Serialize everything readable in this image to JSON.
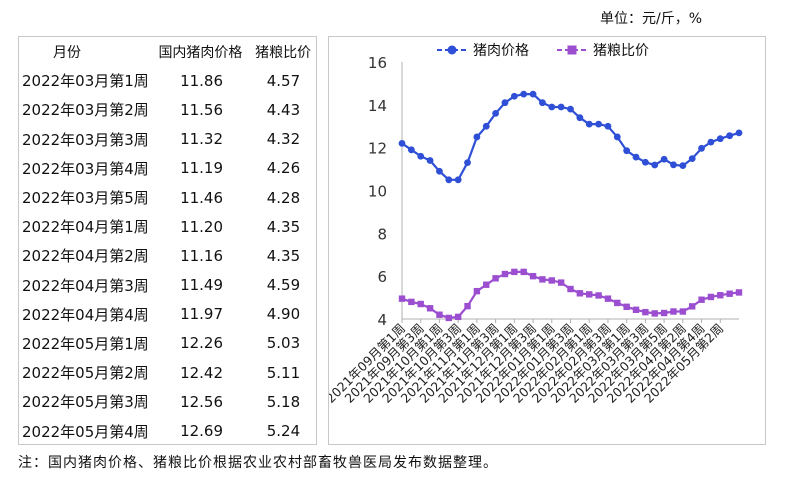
{
  "unit_label": "单位：元/斤，%",
  "note": "注：国内猪肉价格、猪粮比价根据农业农村部畜牧兽医局发布数据整理。",
  "table": {
    "headers": [
      "月份",
      "国内猪肉价格",
      "猪粮比价"
    ],
    "rows": [
      [
        "2022年03月第1周",
        "11.86",
        "4.57"
      ],
      [
        "2022年03月第2周",
        "11.56",
        "4.43"
      ],
      [
        "2022年03月第3周",
        "11.32",
        "4.32"
      ],
      [
        "2022年03月第4周",
        "11.19",
        "4.26"
      ],
      [
        "2022年03月第5周",
        "11.46",
        "4.28"
      ],
      [
        "2022年04月第1周",
        "11.20",
        "4.35"
      ],
      [
        "2022年04月第2周",
        "11.16",
        "4.35"
      ],
      [
        "2022年04月第3周",
        "11.49",
        "4.59"
      ],
      [
        "2022年04月第4周",
        "11.97",
        "4.90"
      ],
      [
        "2022年05月第1周",
        "12.26",
        "5.03"
      ],
      [
        "2022年05月第2周",
        "12.42",
        "5.11"
      ],
      [
        "2022年05月第3周",
        "12.56",
        "5.18"
      ],
      [
        "2022年05月第4周",
        "12.69",
        "5.24"
      ]
    ]
  },
  "chart_data": {
    "type": "line",
    "ylim": [
      4,
      16
    ],
    "y_ticks": [
      4,
      6,
      8,
      10,
      12,
      14,
      16
    ],
    "grid": false,
    "legend_position": "top",
    "categories": [
      "2021年09月第1周",
      "2021年09月第2周",
      "2021年09月第3周",
      "2021年09月第4周",
      "2021年10月第1周",
      "2021年10月第2周",
      "2021年10月第3周",
      "2021年10月第4周",
      "2021年11月第1周",
      "2021年11月第2周",
      "2021年11月第3周",
      "2021年11月第4周",
      "2021年12月第1周",
      "2021年12月第2周",
      "2021年12月第3周",
      "2021年12月第4周",
      "2022年01月第1周",
      "2022年01月第2周",
      "2022年01月第3周",
      "2022年01月第4周",
      "2022年02月第1周",
      "2022年02月第2周",
      "2022年02月第3周",
      "2022年02月第4周",
      "2022年03月第1周",
      "2022年03月第2周",
      "2022年03月第3周",
      "2022年03月第4周",
      "2022年03月第5周",
      "2022年04月第1周",
      "2022年04月第2周",
      "2022年04月第3周",
      "2022年04月第4周",
      "2022年05月第1周",
      "2022年05月第2周",
      "2022年05月第3周",
      "2022年05月第4周"
    ],
    "tick_labels": [
      "2021年09月第1周",
      "2021年09月第3周",
      "2021年10月第1周",
      "2021年10月第3周",
      "2021年11月第1周",
      "2021年11月第3周",
      "2021年12月第1周",
      "2021年12月第3周",
      "2022年01月第1周",
      "2022年01月第3周",
      "2022年02月第1周",
      "2022年02月第3周",
      "2022年03月第1周",
      "2022年03月第3周",
      "2022年03月第5周",
      "2022年04月第2周",
      "2022年04月第4周",
      "2022年05月第2周"
    ],
    "series": [
      {
        "name": "猪肉价格",
        "color": "#2e4fd6",
        "marker": "circle",
        "values": [
          12.2,
          11.9,
          11.6,
          11.4,
          10.9,
          10.5,
          10.5,
          11.3,
          12.5,
          13.0,
          13.6,
          14.1,
          14.4,
          14.5,
          14.5,
          14.1,
          13.9,
          13.9,
          13.8,
          13.4,
          13.1,
          13.1,
          13.0,
          12.5,
          11.86,
          11.56,
          11.32,
          11.19,
          11.46,
          11.2,
          11.16,
          11.49,
          11.97,
          12.26,
          12.42,
          12.56,
          12.69
        ]
      },
      {
        "name": "猪粮比价",
        "color": "#9b4fd0",
        "marker": "square",
        "values": [
          4.95,
          4.8,
          4.7,
          4.5,
          4.2,
          4.05,
          4.1,
          4.6,
          5.3,
          5.6,
          5.9,
          6.1,
          6.2,
          6.2,
          6.0,
          5.85,
          5.8,
          5.7,
          5.4,
          5.2,
          5.15,
          5.1,
          4.95,
          4.75,
          4.57,
          4.43,
          4.32,
          4.26,
          4.28,
          4.35,
          4.35,
          4.59,
          4.9,
          5.03,
          5.11,
          5.18,
          5.24
        ]
      }
    ]
  }
}
